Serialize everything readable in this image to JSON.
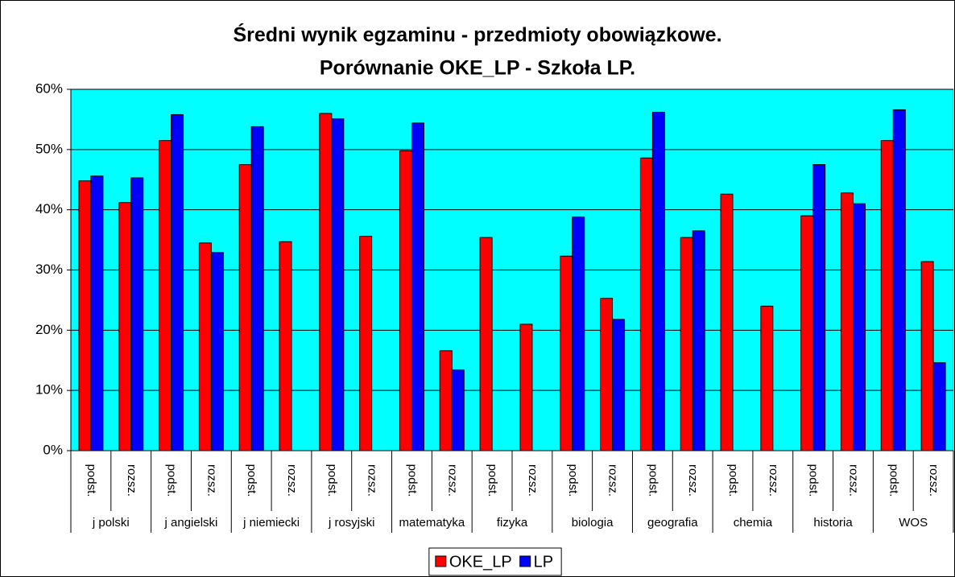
{
  "chart_data": {
    "type": "bar",
    "title": "Średni wynik egzaminu - przedmioty obowiązkowe.",
    "subtitle": "Porównanie OKE_LP - Szkoła LP.",
    "groups": [
      "j polski",
      "j angielski",
      "j niemiecki",
      "j rosyjski",
      "matematyka",
      "fizyka",
      "biologia",
      "geografia",
      "chemia",
      "historia",
      "WOS"
    ],
    "categories": [
      "podst.",
      "rozsz.",
      "podst.",
      "rozsz.",
      "podst.",
      "rozsz.",
      "podst.",
      "rozsz.",
      "podst.",
      "rozsz.",
      "podst.",
      "rozsz.",
      "podst.",
      "rozsz.",
      "podst.",
      "rozsz.",
      "podst.",
      "rozsz.",
      "podst.",
      "rozsz.",
      "podst.",
      "rozsz."
    ],
    "series": [
      {
        "name": "OKE_LP",
        "color": "#ff0000",
        "values": [
          44.8,
          41.2,
          51.5,
          34.5,
          47.5,
          34.7,
          56.0,
          35.6,
          49.8,
          16.6,
          35.4,
          21.0,
          32.3,
          25.3,
          48.6,
          35.4,
          42.6,
          24.0,
          39.0,
          42.8,
          51.5,
          31.4
        ]
      },
      {
        "name": "LP",
        "color": "#0000ff",
        "values": [
          45.6,
          45.3,
          55.8,
          32.9,
          53.8,
          null,
          55.1,
          null,
          54.4,
          13.4,
          null,
          null,
          38.8,
          21.8,
          56.2,
          36.5,
          null,
          null,
          47.5,
          41.0,
          56.6,
          14.6
        ]
      }
    ],
    "ylim": [
      0,
      60
    ],
    "yticks": [
      {
        "value": 0,
        "label": "0%"
      },
      {
        "value": 10,
        "label": "10%"
      },
      {
        "value": 20,
        "label": "20%"
      },
      {
        "value": 30,
        "label": "30%"
      },
      {
        "value": 40,
        "label": "40%"
      },
      {
        "value": 50,
        "label": "50%"
      },
      {
        "value": 60,
        "label": "60%"
      }
    ],
    "grid": true,
    "plot_background": "#00ffff",
    "legend": "bottom"
  }
}
